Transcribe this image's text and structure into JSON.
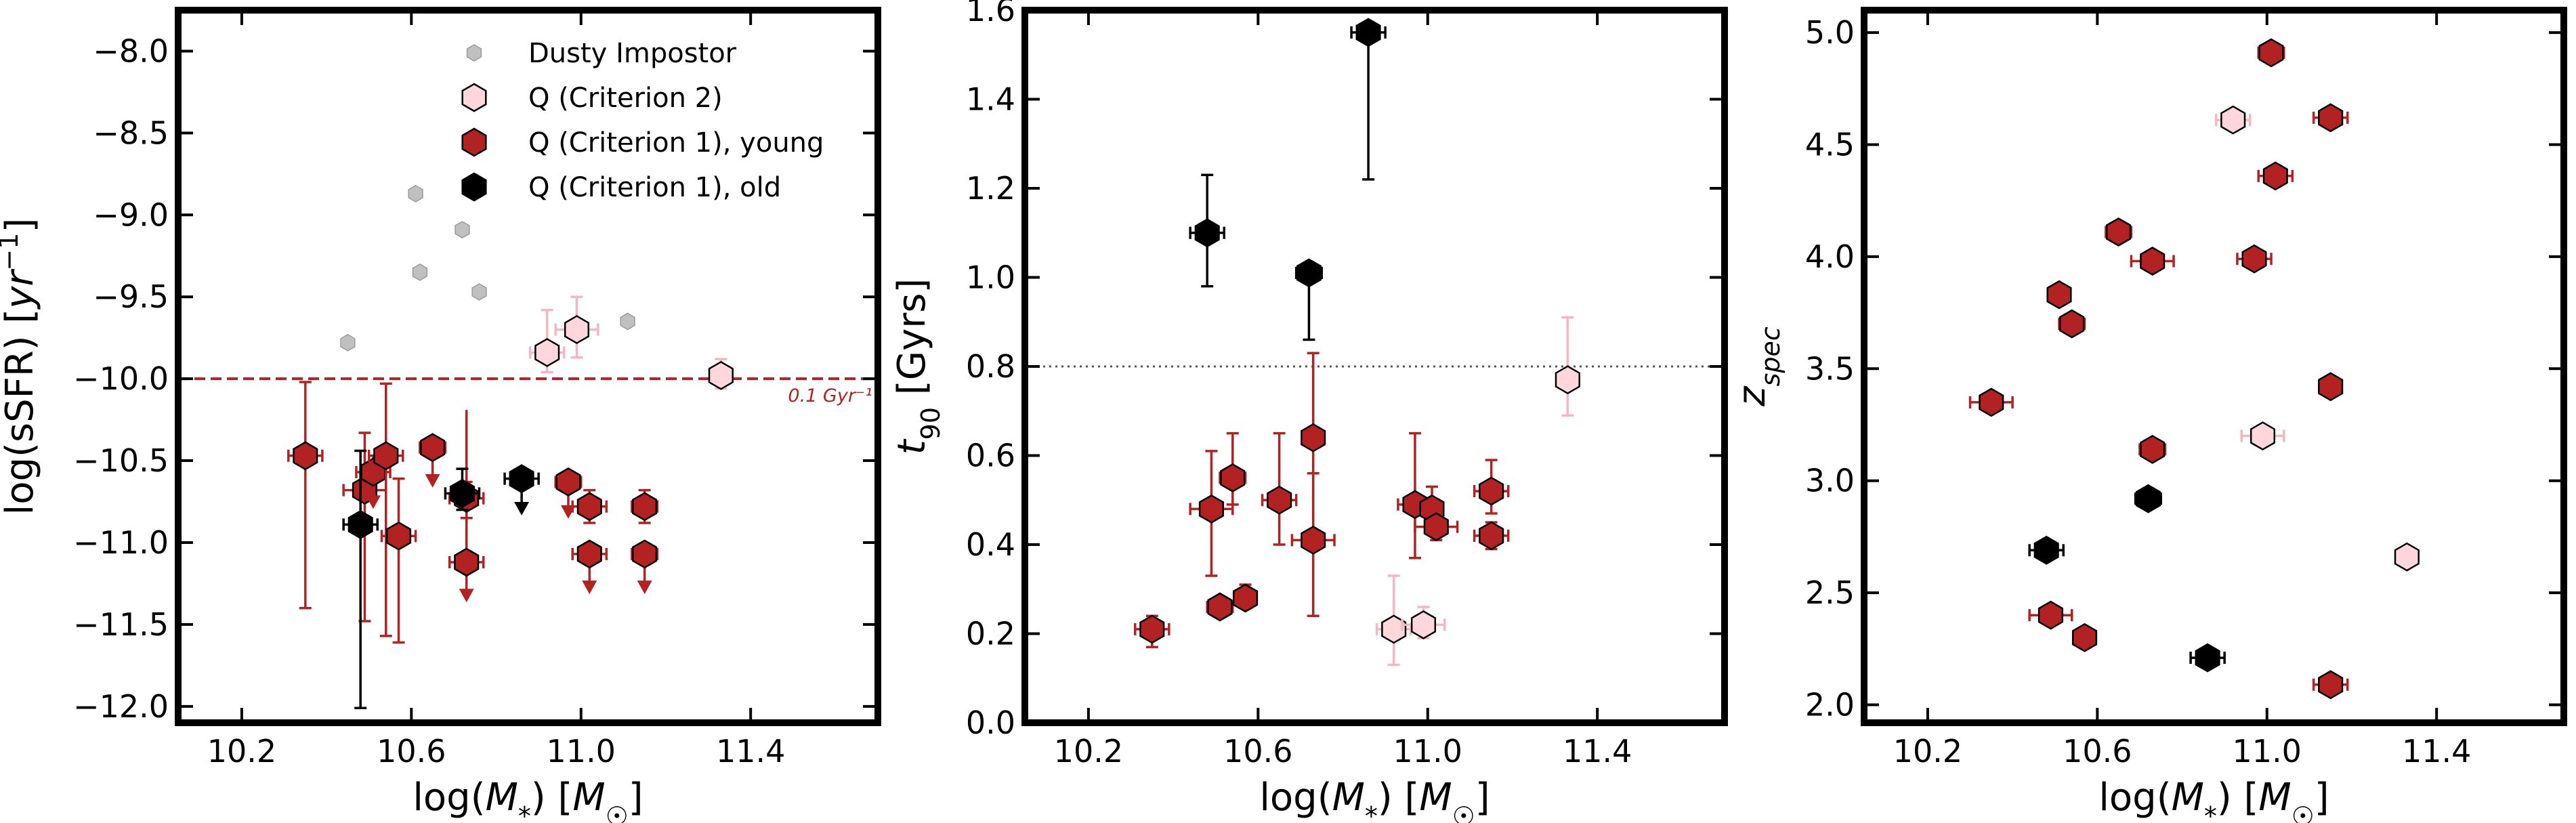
{
  "colors": {
    "dusty": "#c0c0c0",
    "q2": "#ffd6dc",
    "q2_err": "#f4b7c1",
    "young": "#b22222",
    "old": "#000000"
  },
  "legend": {
    "dusty": "Dusty Impostor",
    "q2": "Q (Criterion 2)",
    "young": "Q (Criterion 1), young",
    "old": "Q (Criterion 1), old"
  },
  "chart_data": [
    {
      "type": "scatter",
      "panel": "left",
      "xlabel": "log(M*) [M☉]",
      "ylabel": "log(sSFR) [yr⁻¹]",
      "xlim": [
        10.05,
        11.7
      ],
      "ylim": [
        -12.1,
        -7.75
      ],
      "xticks": [
        10.2,
        10.6,
        11.0,
        11.4
      ],
      "xtick_labels": [
        "10.2",
        "10.6",
        "11.0",
        "11.4"
      ],
      "yticks": [
        -12.0,
        -11.5,
        -11.0,
        -10.5,
        -10.0,
        -9.5,
        -9.0,
        -8.5,
        -8.0
      ],
      "ytick_labels": [
        "−12.0",
        "−11.5",
        "−11.0",
        "−10.5",
        "−10.0",
        "−9.5",
        "−9.0",
        "−8.5",
        "−8.0"
      ],
      "hline": {
        "y": -10.0,
        "style": "dashed",
        "label": "0.1 Gyr⁻¹"
      },
      "series": [
        {
          "name": "Dusty Impostor",
          "key": "dusty",
          "points": [
            {
              "x": 10.45,
              "y": -9.78
            },
            {
              "x": 10.61,
              "y": -8.87
            },
            {
              "x": 10.62,
              "y": -9.35
            },
            {
              "x": 10.72,
              "y": -9.09
            },
            {
              "x": 10.76,
              "y": -9.47
            },
            {
              "x": 11.11,
              "y": -9.65
            }
          ]
        },
        {
          "name": "Q (Criterion 2)",
          "key": "q2",
          "points": [
            {
              "x": 10.92,
              "y": -9.84,
              "xerr": 0.04,
              "ylo": 0.12,
              "yhi": 0.26
            },
            {
              "x": 10.99,
              "y": -9.7,
              "xerr": 0.05,
              "ylo": 0.17,
              "yhi": 0.2
            },
            {
              "x": 11.33,
              "y": -9.98,
              "xerr": 0.02,
              "ylo": 0.08,
              "yhi": 0.1
            }
          ]
        },
        {
          "name": "Q (Criterion 1), young",
          "key": "young",
          "points": [
            {
              "x": 10.35,
              "y": -10.47,
              "xerr": 0.04,
              "ylo": 0.93,
              "yhi": 0.45
            },
            {
              "x": 10.49,
              "y": -10.68,
              "xerr": 0.05,
              "ylo": 0.8,
              "yhi": 0.35
            },
            {
              "x": 10.51,
              "y": -10.57,
              "xerr": 0.04,
              "ylo": 0.2,
              "yhi": 0.1,
              "upper": true
            },
            {
              "x": 10.54,
              "y": -10.47,
              "xerr": 0.04,
              "ylo": 1.1,
              "yhi": 0.44
            },
            {
              "x": 10.57,
              "y": -10.96,
              "xerr": 0.04,
              "ylo": 0.65,
              "yhi": 0.35
            },
            {
              "x": 10.65,
              "y": -10.42,
              "xerr": 0.03,
              "ylo": 0.22,
              "yhi": 0.05,
              "upper": true
            },
            {
              "x": 10.73,
              "y": -11.12,
              "xerr": 0.04,
              "ylo": 0.22,
              "yhi": 0.93,
              "upper": true
            },
            {
              "x": 10.73,
              "y": -10.73,
              "xerr": 0.04,
              "ylo": 0.12,
              "yhi": 0.1
            },
            {
              "x": 10.97,
              "y": -10.63,
              "xerr": 0.03,
              "ylo": 0.2,
              "yhi": 0.05,
              "upper": true
            },
            {
              "x": 11.02,
              "y": -10.78,
              "xerr": 0.04,
              "ylo": 0.1,
              "yhi": 0.1
            },
            {
              "x": 11.02,
              "y": -11.07,
              "xerr": 0.04,
              "ylo": 0.22,
              "yhi": 0.06,
              "upper": true
            },
            {
              "x": 11.15,
              "y": -10.78,
              "xerr": 0.03,
              "ylo": 0.1,
              "yhi": 0.1
            },
            {
              "x": 11.15,
              "y": -11.07,
              "xerr": 0.03,
              "ylo": 0.22,
              "yhi": 0.06,
              "upper": true
            }
          ]
        },
        {
          "name": "Q (Criterion 1), old",
          "key": "old",
          "points": [
            {
              "x": 10.48,
              "y": -10.89,
              "xerr": 0.04,
              "ylo": 1.12,
              "yhi": 0.45
            },
            {
              "x": 10.72,
              "y": -10.7,
              "xerr": 0.04,
              "ylo": 0.1,
              "yhi": 0.15
            },
            {
              "x": 10.86,
              "y": -10.61,
              "xerr": 0.04,
              "ylo": 0.2,
              "yhi": 0.05,
              "upper": true
            }
          ]
        }
      ]
    },
    {
      "type": "scatter",
      "panel": "middle",
      "xlabel": "log(M*) [M☉]",
      "ylabel": "t90 [Gyrs]",
      "xlim": [
        10.05,
        11.7
      ],
      "ylim": [
        0.0,
        1.6
      ],
      "xticks": [
        10.2,
        10.6,
        11.0,
        11.4
      ],
      "xtick_labels": [
        "10.2",
        "10.6",
        "11.0",
        "11.4"
      ],
      "yticks": [
        0.0,
        0.2,
        0.4,
        0.6,
        0.8,
        1.0,
        1.2,
        1.4,
        1.6
      ],
      "ytick_labels": [
        "0.0",
        "0.2",
        "0.4",
        "0.6",
        "0.8",
        "1.0",
        "1.2",
        "1.4",
        "1.6"
      ],
      "hline": {
        "y": 0.8,
        "style": "dotted"
      },
      "series": [
        {
          "name": "Q (Criterion 2)",
          "key": "q2",
          "points": [
            {
              "x": 10.92,
              "y": 0.21,
              "xerr": 0.04,
              "ylo": 0.08,
              "yhi": 0.12
            },
            {
              "x": 10.99,
              "y": 0.22,
              "xerr": 0.05,
              "ylo": 0.03,
              "yhi": 0.04
            },
            {
              "x": 11.33,
              "y": 0.77,
              "xerr": 0.02,
              "ylo": 0.08,
              "yhi": 0.14
            }
          ]
        },
        {
          "name": "Q (Criterion 1), young",
          "key": "young",
          "points": [
            {
              "x": 10.35,
              "y": 0.21,
              "xerr": 0.04,
              "ylo": 0.04,
              "yhi": 0.03
            },
            {
              "x": 10.49,
              "y": 0.48,
              "xerr": 0.05,
              "ylo": 0.15,
              "yhi": 0.13
            },
            {
              "x": 10.51,
              "y": 0.26,
              "xerr": 0.03,
              "ylo": 0.01,
              "yhi": 0.01
            },
            {
              "x": 10.54,
              "y": 0.55,
              "xerr": 0.03,
              "ylo": 0.06,
              "yhi": 0.1
            },
            {
              "x": 10.57,
              "y": 0.28,
              "xerr": 0.02,
              "ylo": 0.02,
              "yhi": 0.03
            },
            {
              "x": 10.65,
              "y": 0.5,
              "xerr": 0.04,
              "ylo": 0.1,
              "yhi": 0.15
            },
            {
              "x": 10.73,
              "y": 0.64,
              "xerr": 0.02,
              "ylo": 0.24,
              "yhi": 0.19
            },
            {
              "x": 10.73,
              "y": 0.41,
              "xerr": 0.05,
              "ylo": 0.17,
              "yhi": 0.15
            },
            {
              "x": 10.97,
              "y": 0.49,
              "xerr": 0.04,
              "ylo": 0.12,
              "yhi": 0.16
            },
            {
              "x": 11.01,
              "y": 0.48,
              "xerr": 0.02,
              "ylo": 0.05,
              "yhi": 0.05
            },
            {
              "x": 11.02,
              "y": 0.44,
              "xerr": 0.05,
              "ylo": 0.03,
              "yhi": 0.03
            },
            {
              "x": 11.15,
              "y": 0.52,
              "xerr": 0.04,
              "ylo": 0.05,
              "yhi": 0.07
            },
            {
              "x": 11.15,
              "y": 0.42,
              "xerr": 0.04,
              "ylo": 0.03,
              "yhi": 0.03
            }
          ]
        },
        {
          "name": "Q (Criterion 1), old",
          "key": "old",
          "points": [
            {
              "x": 10.48,
              "y": 1.1,
              "xerr": 0.04,
              "ylo": 0.12,
              "yhi": 0.13
            },
            {
              "x": 10.72,
              "y": 1.01,
              "xerr": 0.03,
              "ylo": 0.15,
              "yhi": 0.02
            },
            {
              "x": 10.86,
              "y": 1.55,
              "xerr": 0.04,
              "ylo": 0.33,
              "yhi": 0.02
            }
          ]
        }
      ]
    },
    {
      "type": "scatter",
      "panel": "right",
      "xlabel": "log(M*) [M☉]",
      "ylabel": "z_spec",
      "xlim": [
        10.05,
        11.7
      ],
      "ylim": [
        1.92,
        5.1
      ],
      "xticks": [
        10.2,
        10.6,
        11.0,
        11.4
      ],
      "xtick_labels": [
        "10.2",
        "10.6",
        "11.0",
        "11.4"
      ],
      "yticks": [
        2.0,
        2.5,
        3.0,
        3.5,
        4.0,
        4.5,
        5.0
      ],
      "ytick_labels": [
        "2.0",
        "2.5",
        "3.0",
        "3.5",
        "4.0",
        "4.5",
        "5.0"
      ],
      "series": [
        {
          "name": "Q (Criterion 2)",
          "key": "q2",
          "points": [
            {
              "x": 10.92,
              "y": 4.61,
              "xerr": 0.04
            },
            {
              "x": 10.99,
              "y": 3.2,
              "xerr": 0.05
            },
            {
              "x": 11.33,
              "y": 2.66,
              "xerr": 0.02
            }
          ]
        },
        {
          "name": "Q (Criterion 1), young",
          "key": "young",
          "points": [
            {
              "x": 10.35,
              "y": 3.35,
              "xerr": 0.05
            },
            {
              "x": 10.49,
              "y": 2.4,
              "xerr": 0.05
            },
            {
              "x": 10.51,
              "y": 3.83,
              "xerr": 0.02
            },
            {
              "x": 10.54,
              "y": 3.7,
              "xerr": 0.03
            },
            {
              "x": 10.57,
              "y": 2.3,
              "xerr": 0.02
            },
            {
              "x": 10.65,
              "y": 4.11,
              "xerr": 0.03
            },
            {
              "x": 10.73,
              "y": 3.98,
              "xerr": 0.05
            },
            {
              "x": 10.73,
              "y": 3.14,
              "xerr": 0.03
            },
            {
              "x": 10.97,
              "y": 3.99,
              "xerr": 0.04
            },
            {
              "x": 11.01,
              "y": 4.91,
              "xerr": 0.03
            },
            {
              "x": 11.02,
              "y": 4.36,
              "xerr": 0.04
            },
            {
              "x": 11.15,
              "y": 4.62,
              "xerr": 0.04
            },
            {
              "x": 11.15,
              "y": 3.42,
              "xerr": 0.02
            },
            {
              "x": 11.15,
              "y": 2.09,
              "xerr": 0.04
            }
          ]
        },
        {
          "name": "Q (Criterion 1), old",
          "key": "old",
          "points": [
            {
              "x": 10.48,
              "y": 2.69,
              "xerr": 0.04
            },
            {
              "x": 10.72,
              "y": 2.92,
              "xerr": 0.03
            },
            {
              "x": 10.86,
              "y": 2.21,
              "xerr": 0.04
            }
          ]
        }
      ]
    }
  ]
}
